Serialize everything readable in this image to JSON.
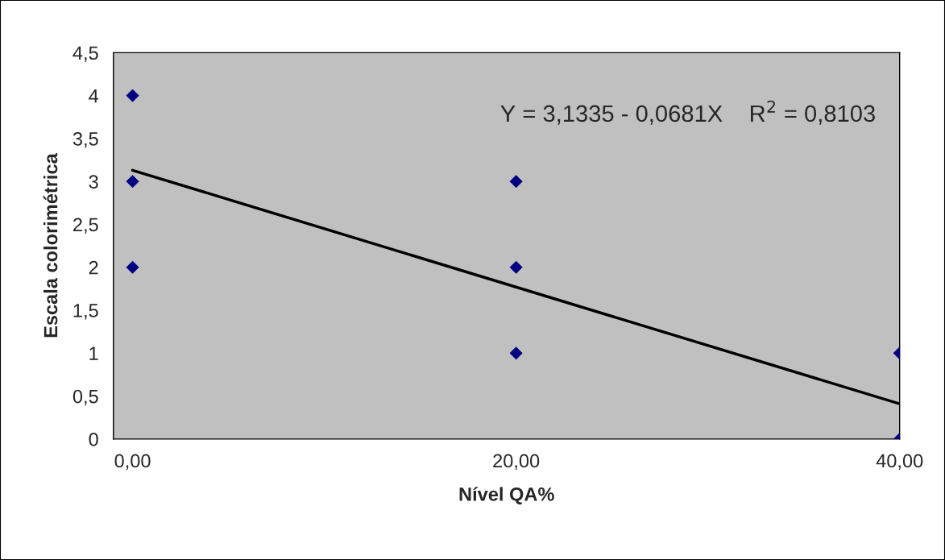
{
  "chart_data": {
    "type": "scatter",
    "xlabel": "Nível QA%",
    "ylabel": "Escala colorimétrica",
    "xlim": [
      -1,
      40
    ],
    "xticks": [
      {
        "value": 0,
        "label": "0,00"
      },
      {
        "value": 20,
        "label": "20,00"
      },
      {
        "value": 40,
        "label": "40,00"
      }
    ],
    "ylim": [
      0,
      4.5
    ],
    "yticks": [
      0,
      {
        "value": 0.5,
        "label": "0,5"
      },
      1,
      {
        "value": 1.5,
        "label": "1,5"
      },
      2,
      {
        "value": 2.5,
        "label": "2,5"
      },
      3,
      {
        "value": 3.5,
        "label": "3,5"
      },
      4,
      {
        "value": 4.5,
        "label": "4,5"
      }
    ],
    "series": [
      {
        "color": "#000080",
        "x": [
          0,
          0,
          0,
          20,
          20,
          20,
          40,
          40
        ],
        "values": [
          4,
          3,
          2,
          3,
          2,
          1,
          1,
          0
        ]
      },
      {
        "type": "line",
        "color": "#000000",
        "marker": "none",
        "x": [
          0,
          40
        ],
        "values": [
          3.13,
          0.41
        ]
      }
    ],
    "annotations": [
      "Y = 3,1335 - 0,0681X    R$^{2}$ = 0,8103"
    ],
    "marker": "diamond",
    "grid": false,
    "legend": false
  }
}
